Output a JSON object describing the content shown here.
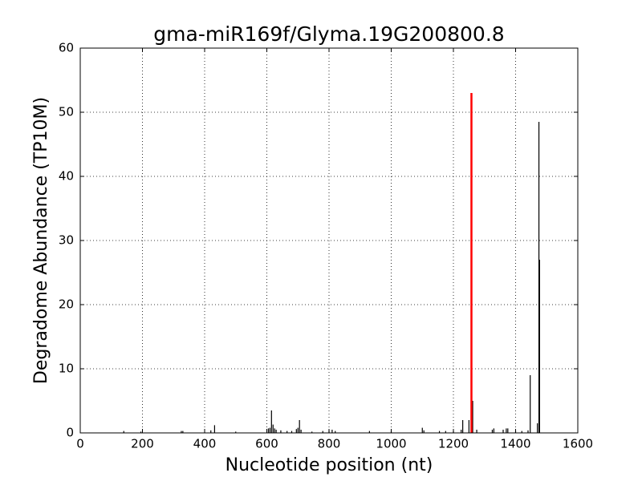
{
  "chart_data": {
    "type": "line",
    "title": "gma-miR169f/Glyma.19G200800.8",
    "x_label": "Nucleotide position (nt)",
    "y_label": "Degradome Abundance (TP10M)",
    "series": [
      {
        "color": "#000000",
        "x": [
          140,
          195,
          325,
          330,
          420,
          432,
          500,
          605,
          610,
          615,
          620,
          625,
          630,
          645,
          665,
          680,
          695,
          700,
          705,
          710,
          745,
          780,
          800,
          810,
          820,
          930,
          1000,
          1100,
          1105,
          1155,
          1175,
          1200,
          1225,
          1230,
          1250,
          1262,
          1275,
          1325,
          1330,
          1360,
          1370,
          1375,
          1400,
          1420,
          1440,
          1447,
          1470,
          1475,
          1477
        ],
        "values": [
          0.3,
          0.2,
          0.3,
          0.3,
          0.4,
          1.2,
          0.2,
          0.7,
          0.8,
          3.5,
          1.3,
          0.7,
          0.5,
          0.4,
          0.3,
          0.3,
          0.6,
          0.8,
          2,
          0.5,
          0.2,
          0.3,
          0.4,
          0.5,
          0.3,
          0.3,
          0.3,
          0.8,
          0.4,
          0.3,
          0.3,
          0.3,
          0.5,
          2,
          2,
          5,
          0.5,
          0.5,
          0.7,
          0.5,
          0.7,
          0.7,
          0.3,
          0.3,
          0.4,
          9,
          1.5,
          48.5,
          27
        ]
      },
      {
        "color": "#ff0000",
        "x": [
          1258
        ],
        "values": [
          53
        ]
      }
    ],
    "xlim": [
      0,
      1600
    ],
    "xticks": [
      0,
      200,
      400,
      600,
      800,
      1000,
      1200,
      1400,
      1600
    ],
    "ylim": [
      0,
      60
    ],
    "yticks": [
      0,
      10,
      20,
      30,
      40,
      50,
      60
    ],
    "grid": true
  }
}
